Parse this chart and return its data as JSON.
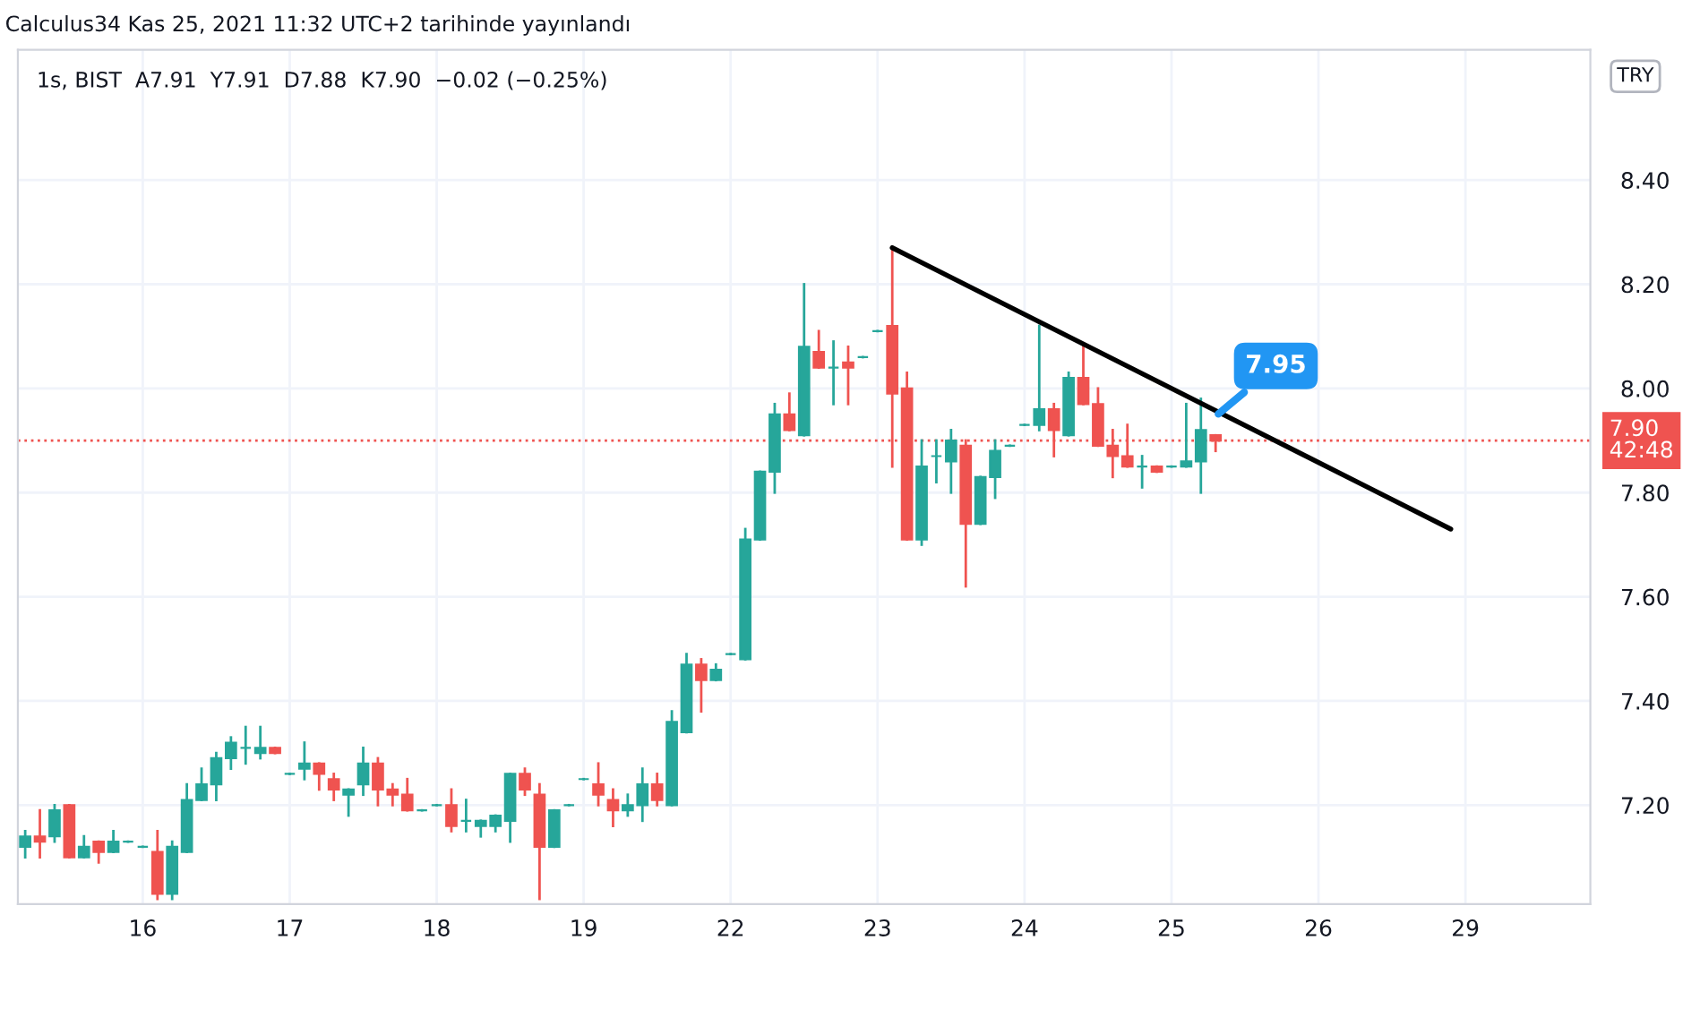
{
  "chart_data": {
    "type": "candlestick",
    "subtitle": "1s, BIST  A7.91  Y7.91  D7.88  K7.90  −0.02 (−0.25%)",
    "annotations": [
      "Calculus34 Kas 25, 2021 11:32 UTC+2 tarihinde yayınlandı",
      "TRY",
      "7.95"
    ],
    "categories": [
      null,
      null,
      null,
      null,
      null,
      null,
      null,
      null,
      "16",
      null,
      null,
      null,
      null,
      null,
      null,
      null,
      null,
      null,
      "17",
      null,
      null,
      null,
      null,
      null,
      null,
      null,
      null,
      null,
      "18",
      null,
      null,
      null,
      null,
      null,
      null,
      null,
      null,
      null,
      "19",
      null,
      null,
      null,
      null,
      null,
      null,
      null,
      null,
      null,
      "22",
      null,
      null,
      null,
      null,
      null,
      null,
      null,
      null,
      null,
      "23",
      null,
      null,
      null,
      null,
      null,
      null,
      null,
      null,
      null,
      "24",
      null,
      null,
      null,
      null,
      null,
      null,
      null,
      null,
      null,
      "25",
      null,
      null,
      null,
      null,
      null,
      null,
      null,
      null,
      null,
      "26",
      null,
      null,
      null,
      null,
      null,
      null,
      null,
      null,
      null,
      "29",
      null,
      null,
      null,
      null,
      null,
      null,
      null,
      null
    ],
    "ohlc": [
      [
        7.12,
        7.15,
        7.1,
        7.14
      ],
      [
        7.14,
        7.19,
        7.1,
        7.13
      ],
      [
        7.14,
        7.2,
        7.13,
        7.19
      ],
      [
        7.2,
        7.2,
        7.1,
        7.1
      ],
      [
        7.1,
        7.14,
        7.1,
        7.12
      ],
      [
        7.13,
        7.13,
        7.09,
        7.11
      ],
      [
        7.11,
        7.15,
        7.11,
        7.13
      ],
      [
        7.13,
        7.13,
        7.13,
        7.13
      ],
      [
        7.12,
        7.12,
        7.12,
        7.12
      ],
      [
        7.11,
        7.15,
        7.02,
        7.03
      ],
      [
        7.03,
        7.13,
        7.02,
        7.12
      ],
      [
        7.11,
        7.24,
        7.11,
        7.21
      ],
      [
        7.21,
        7.27,
        7.21,
        7.24
      ],
      [
        7.24,
        7.3,
        7.21,
        7.29
      ],
      [
        7.29,
        7.33,
        7.27,
        7.32
      ],
      [
        7.31,
        7.35,
        7.28,
        7.31
      ],
      [
        7.3,
        7.35,
        7.29,
        7.31
      ],
      [
        7.31,
        7.31,
        7.3,
        7.3
      ],
      [
        7.26,
        7.26,
        7.26,
        7.26
      ],
      [
        7.27,
        7.32,
        7.25,
        7.28
      ],
      [
        7.28,
        7.28,
        7.23,
        7.26
      ],
      [
        7.25,
        7.26,
        7.21,
        7.23
      ],
      [
        7.22,
        7.23,
        7.18,
        7.23
      ],
      [
        7.24,
        7.31,
        7.22,
        7.28
      ],
      [
        7.28,
        7.29,
        7.2,
        7.23
      ],
      [
        7.23,
        7.24,
        7.2,
        7.22
      ],
      [
        7.22,
        7.25,
        7.19,
        7.19
      ],
      [
        7.19,
        7.19,
        7.19,
        7.19
      ],
      [
        7.2,
        7.2,
        7.2,
        7.2
      ],
      [
        7.2,
        7.23,
        7.15,
        7.16
      ],
      [
        7.17,
        7.21,
        7.15,
        7.17
      ],
      [
        7.16,
        7.17,
        7.14,
        7.17
      ],
      [
        7.16,
        7.18,
        7.15,
        7.18
      ],
      [
        7.17,
        7.26,
        7.13,
        7.26
      ],
      [
        7.26,
        7.27,
        7.22,
        7.23
      ],
      [
        7.22,
        7.24,
        7.02,
        7.12
      ],
      [
        7.12,
        7.19,
        7.12,
        7.19
      ],
      [
        7.2,
        7.2,
        7.2,
        7.2
      ],
      [
        7.25,
        7.25,
        7.25,
        7.25
      ],
      [
        7.24,
        7.28,
        7.2,
        7.22
      ],
      [
        7.21,
        7.23,
        7.16,
        7.19
      ],
      [
        7.19,
        7.22,
        7.18,
        7.2
      ],
      [
        7.2,
        7.27,
        7.17,
        7.24
      ],
      [
        7.24,
        7.26,
        7.2,
        7.21
      ],
      [
        7.2,
        7.38,
        7.2,
        7.36
      ],
      [
        7.34,
        7.49,
        7.34,
        7.47
      ],
      [
        7.47,
        7.48,
        7.38,
        7.44
      ],
      [
        7.44,
        7.47,
        7.44,
        7.46
      ],
      [
        7.49,
        7.49,
        7.49,
        7.49
      ],
      [
        7.48,
        7.73,
        7.48,
        7.71
      ],
      [
        7.71,
        7.84,
        7.71,
        7.84
      ],
      [
        7.84,
        7.97,
        7.8,
        7.95
      ],
      [
        7.95,
        7.99,
        7.92,
        7.92
      ],
      [
        7.91,
        8.2,
        7.91,
        8.08
      ],
      [
        8.07,
        8.11,
        8.04,
        8.04
      ],
      [
        8.04,
        8.09,
        7.97,
        8.04
      ],
      [
        8.05,
        8.08,
        7.97,
        8.04
      ],
      [
        8.06,
        8.06,
        8.06,
        8.06
      ],
      [
        8.11,
        8.11,
        8.11,
        8.11
      ],
      [
        8.12,
        8.27,
        7.85,
        7.99
      ],
      [
        8.0,
        8.03,
        7.71,
        7.71
      ],
      [
        7.71,
        7.9,
        7.7,
        7.85
      ],
      [
        7.87,
        7.9,
        7.82,
        7.87
      ],
      [
        7.86,
        7.92,
        7.8,
        7.9
      ],
      [
        7.89,
        7.9,
        7.62,
        7.74
      ],
      [
        7.74,
        7.83,
        7.74,
        7.83
      ],
      [
        7.83,
        7.9,
        7.79,
        7.88
      ],
      [
        7.89,
        7.89,
        7.89,
        7.89
      ],
      [
        7.93,
        7.93,
        7.93,
        7.93
      ],
      [
        7.93,
        8.12,
        7.92,
        7.96
      ],
      [
        7.96,
        7.97,
        7.87,
        7.92
      ],
      [
        7.91,
        8.03,
        7.91,
        8.02
      ],
      [
        8.02,
        8.08,
        7.97,
        7.97
      ],
      [
        7.97,
        8.0,
        7.89,
        7.89
      ],
      [
        7.89,
        7.92,
        7.83,
        7.87
      ],
      [
        7.87,
        7.93,
        7.85,
        7.85
      ],
      [
        7.85,
        7.87,
        7.81,
        7.85
      ],
      [
        7.85,
        7.85,
        7.84,
        7.84
      ],
      [
        7.85,
        7.85,
        7.85,
        7.85
      ],
      [
        7.85,
        7.97,
        7.85,
        7.86
      ],
      [
        7.86,
        7.98,
        7.8,
        7.92
      ],
      [
        7.91,
        7.91,
        7.88,
        7.9
      ],
      null,
      null,
      null,
      null,
      null,
      null,
      null,
      null,
      null,
      null,
      null,
      null,
      null,
      null,
      null,
      null,
      null,
      null,
      null,
      null,
      null,
      null,
      null,
      null,
      null
    ],
    "colors": [
      "#26a69a",
      "#ef5350",
      "#26a69a",
      "#ef5350",
      "#26a69a",
      "#ef5350",
      "#26a69a",
      "#26a69a",
      "#26a69a",
      "#ef5350",
      "#26a69a",
      "#26a69a",
      "#26a69a",
      "#26a69a",
      "#26a69a",
      "#26a69a",
      "#26a69a",
      "#ef5350",
      "#26a69a",
      "#26a69a",
      "#ef5350",
      "#ef5350",
      "#26a69a",
      "#26a69a",
      "#ef5350",
      "#ef5350",
      "#ef5350",
      "#26a69a",
      "#26a69a",
      "#ef5350",
      "#26a69a",
      "#26a69a",
      "#26a69a",
      "#26a69a",
      "#ef5350",
      "#ef5350",
      "#26a69a",
      "#26a69a",
      "#26a69a",
      "#ef5350",
      "#ef5350",
      "#26a69a",
      "#26a69a",
      "#ef5350",
      "#26a69a",
      "#26a69a",
      "#ef5350",
      "#26a69a",
      "#26a69a",
      "#26a69a",
      "#26a69a",
      "#26a69a",
      "#ef5350",
      "#26a69a",
      "#ef5350",
      "#26a69a",
      "#ef5350",
      "#26a69a",
      "#26a69a",
      "#ef5350",
      "#ef5350",
      "#26a69a",
      "#26a69a",
      "#26a69a",
      "#ef5350",
      "#26a69a",
      "#26a69a",
      "#26a69a",
      "#26a69a",
      "#26a69a",
      "#ef5350",
      "#26a69a",
      "#ef5350",
      "#ef5350",
      "#ef5350",
      "#ef5350",
      "#26a69a",
      "#ef5350",
      "#26a69a",
      "#26a69a",
      "#26a69a",
      "#ef5350",
      null,
      null,
      null,
      null,
      null,
      null,
      null,
      null,
      null,
      null,
      null,
      null,
      null,
      null,
      null,
      null,
      null,
      null,
      null,
      null,
      null,
      null,
      null,
      null,
      null
    ],
    "series": [
      {
        "type": "line",
        "color": "#000000",
        "values": [
          null,
          null,
          null,
          null,
          null,
          null,
          null,
          null,
          null,
          null,
          null,
          null,
          null,
          null,
          null,
          null,
          null,
          null,
          null,
          null,
          null,
          null,
          null,
          null,
          null,
          null,
          null,
          null,
          null,
          null,
          null,
          null,
          null,
          null,
          null,
          null,
          null,
          null,
          null,
          null,
          null,
          null,
          null,
          null,
          null,
          null,
          null,
          null,
          null,
          null,
          null,
          null,
          null,
          null,
          null,
          null,
          null,
          null,
          null,
          8.27,
          null,
          null,
          null,
          null,
          null,
          null,
          null,
          null,
          null,
          null,
          null,
          null,
          null,
          null,
          null,
          null,
          null,
          null,
          null,
          null,
          null,
          null,
          null,
          null,
          null,
          null,
          null,
          null,
          null,
          null,
          null,
          null,
          null,
          null,
          null,
          null,
          null,
          7.73,
          null,
          null,
          null,
          null,
          null,
          null,
          null,
          null,
          null
        ]
      }
    ],
    "ref_lines": [
      {
        "axis": "y",
        "value": 7.9,
        "label": "7.90\n42:48",
        "color": "#ef5350",
        "line_style": "dotted"
      }
    ],
    "ylim": [
      7.01,
      8.65
    ],
    "yticks": [
      {
        "value": 7.2,
        "label": "7.20"
      },
      {
        "value": 7.4,
        "label": "7.40"
      },
      {
        "value": 7.6,
        "label": "7.60"
      },
      {
        "value": 7.8,
        "label": "7.80"
      },
      {
        "value": 8.0,
        "label": "8.00"
      },
      {
        "value": 8.2,
        "label": "8.20"
      },
      {
        "value": 8.4,
        "label": "8.40"
      }
    ],
    "grid": true
  }
}
